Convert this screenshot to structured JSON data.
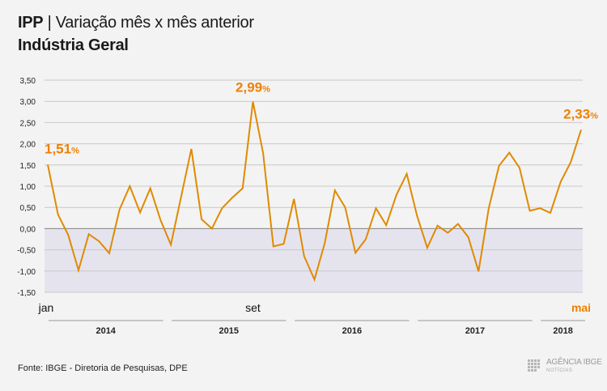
{
  "header": {
    "title_bold": "IPP",
    "title_rest": " | Variação mês x mês anterior",
    "subtitle": "Indústria Geral"
  },
  "source": "Fonte: IBGE - Diretoria de Pesquisas, DPE",
  "logo": {
    "main": "AGÊNCIA IBGE",
    "sub": "NOTÍCIAS"
  },
  "colors": {
    "line": "#e08a00",
    "highlight": "#f08000",
    "negative_band": "#e5e4ee",
    "grid": "#c8c8c8"
  },
  "chart_data": {
    "type": "line",
    "title": "IPP | Variação mês x mês anterior",
    "subtitle": "Indústria Geral",
    "ylim": [
      -1.5,
      3.5
    ],
    "yticks": [
      "3,50",
      "3,00",
      "2,50",
      "2,00",
      "1,50",
      "1,00",
      "0,50",
      "0,00",
      "-0,50",
      "-1,00",
      "-1,50"
    ],
    "ytick_values": [
      3.5,
      3.0,
      2.5,
      2.0,
      1.5,
      1.0,
      0.5,
      0.0,
      -0.5,
      -1.0,
      -1.5
    ],
    "grid": true,
    "years": [
      "2014",
      "2015",
      "2016",
      "2017",
      "2018"
    ],
    "month_labels": [
      {
        "index": 0,
        "text": "jan",
        "highlight": false
      },
      {
        "index": 20,
        "text": "set",
        "highlight": false
      },
      {
        "index": 52,
        "text": "mai",
        "highlight": true
      }
    ],
    "annotations": [
      {
        "index": 0,
        "value": "1,51",
        "unit": "%"
      },
      {
        "index": 20,
        "value": "2,99",
        "unit": "%"
      },
      {
        "index": 52,
        "value": "2,33",
        "unit": "%"
      }
    ],
    "values": [
      1.51,
      0.33,
      -0.15,
      -0.98,
      -0.13,
      -0.3,
      -0.58,
      0.45,
      1.0,
      0.38,
      0.95,
      0.2,
      -0.38,
      0.75,
      1.88,
      0.22,
      0.0,
      0.48,
      0.73,
      0.95,
      2.99,
      1.78,
      -0.42,
      -0.36,
      0.7,
      -0.65,
      -1.2,
      -0.35,
      0.9,
      0.5,
      -0.57,
      -0.25,
      0.48,
      0.08,
      0.8,
      1.29,
      0.31,
      -0.45,
      0.07,
      -0.1,
      0.11,
      -0.2,
      -1.01,
      0.48,
      1.48,
      1.79,
      1.43,
      0.42,
      0.48,
      0.37,
      1.1,
      1.57,
      2.33
    ]
  }
}
